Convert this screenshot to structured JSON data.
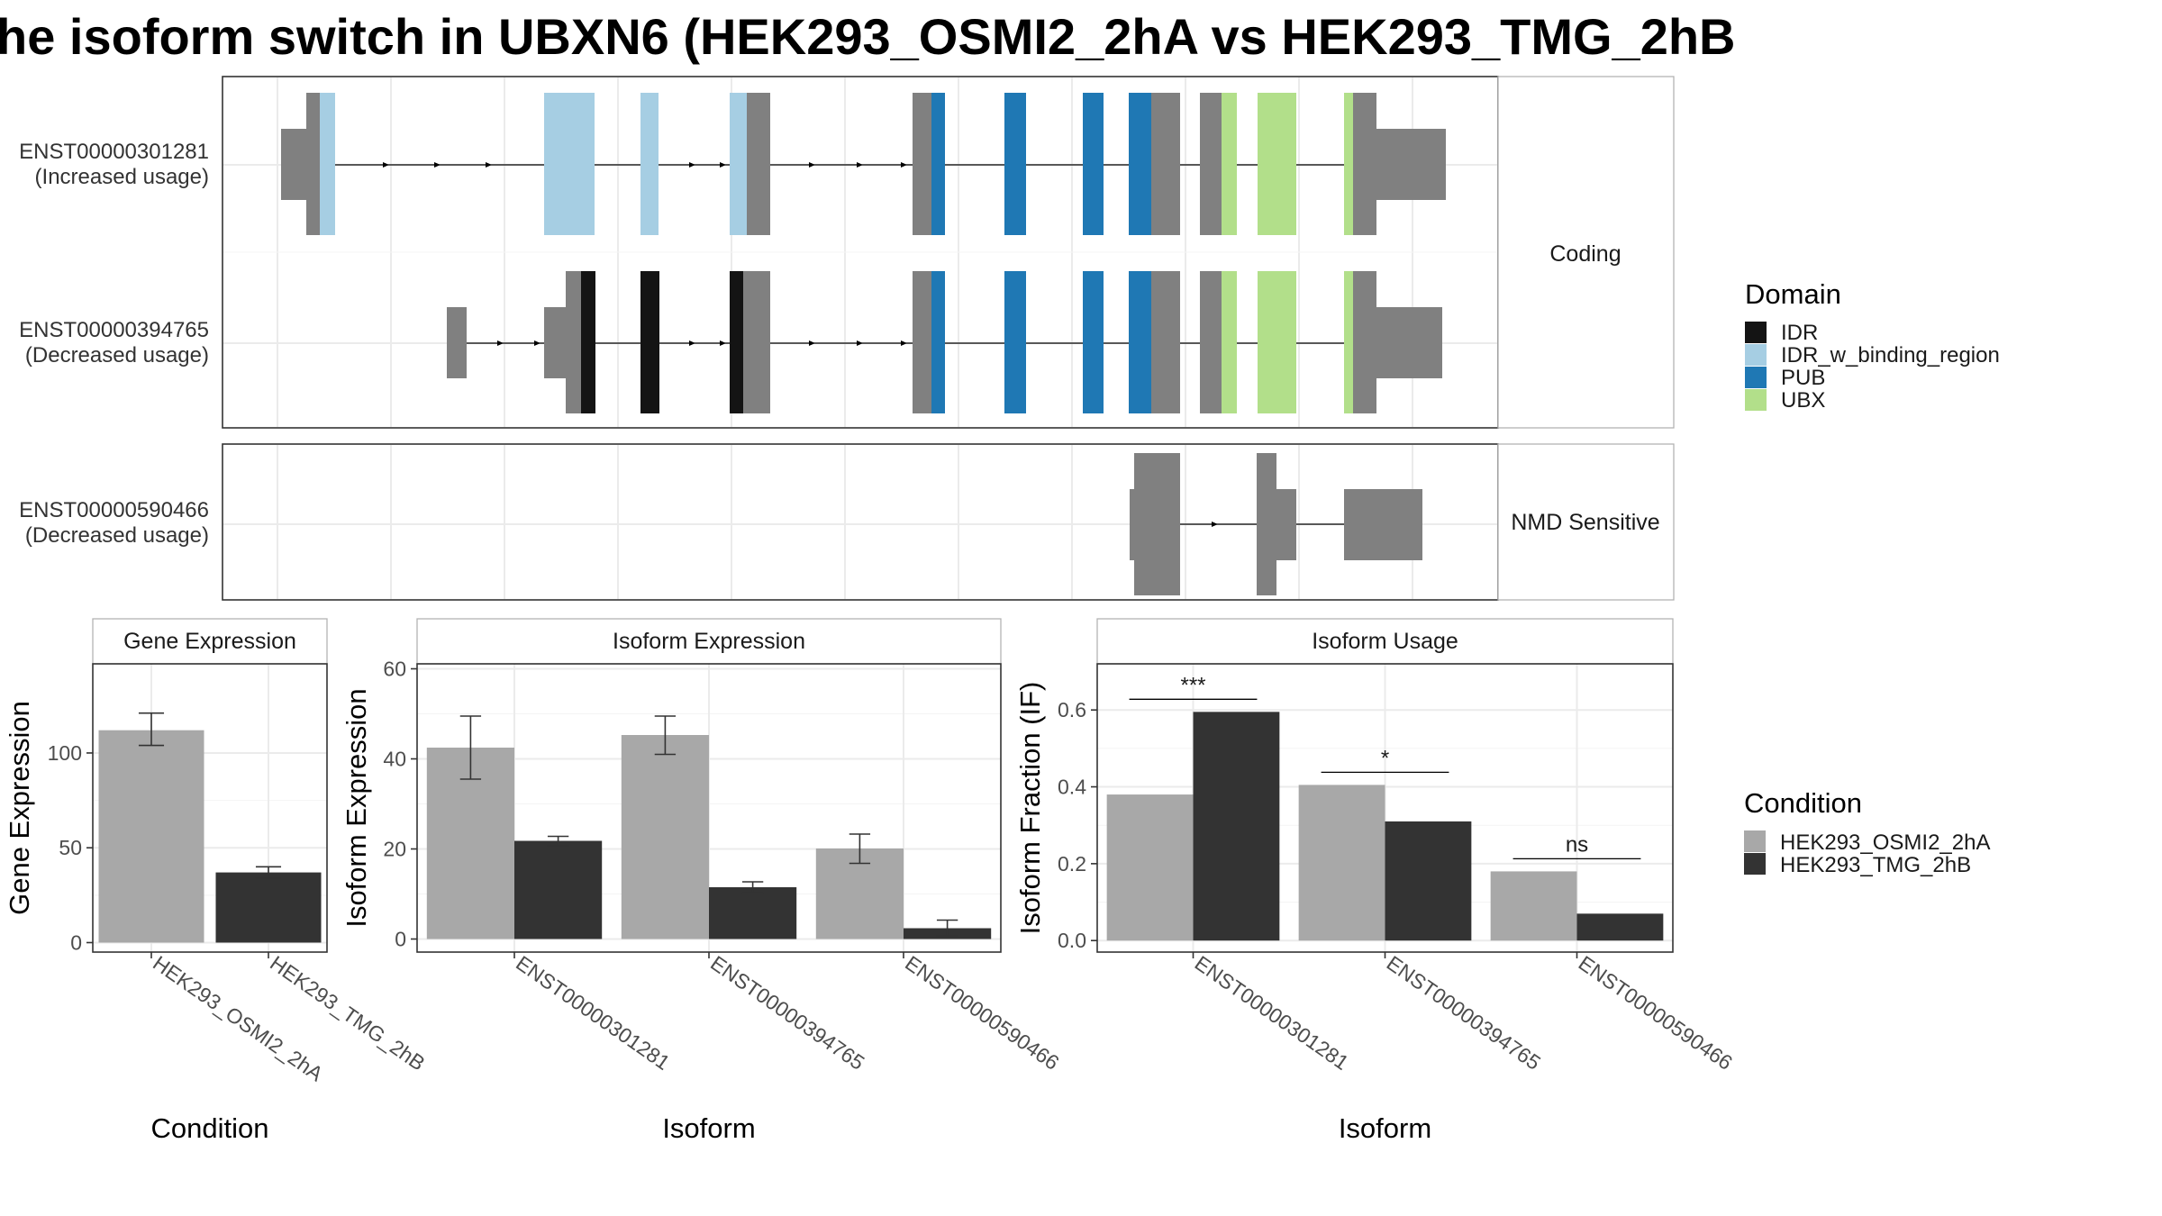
{
  "title": "he isoform switch in UBXN6 (HEK293_OSMI2_2hA vs HEK293_TMG_2hB",
  "colors": {
    "IDR": "#141414",
    "IDR_w_binding_region": "#a6cee3",
    "PUB": "#1f78b4",
    "UBX": "#b2df8a",
    "intron_exon": "#808080",
    "cond_a": "#a8a8a8",
    "cond_b": "#333333",
    "grid": "#ebebeb",
    "panel_border": "#333333",
    "strip_border": "#b3b3b3"
  },
  "structure": {
    "facets": [
      "Coding",
      "NMD Sensitive"
    ],
    "transcripts": [
      {
        "id": "ENST00000301281",
        "usage": "(Increased usage)",
        "facet": "Coding"
      },
      {
        "id": "ENST00000394765",
        "usage": "(Decreased usage)",
        "facet": "Coding"
      },
      {
        "id": "ENST00000590466",
        "usage": "(Decreased usage)",
        "facet": "NMD Sensitive"
      }
    ]
  },
  "legend_domain": {
    "title": "Domain",
    "items": [
      "IDR",
      "IDR_w_binding_region",
      "PUB",
      "UBX"
    ]
  },
  "legend_condition": {
    "title": "Condition",
    "items": [
      "HEK293_OSMI2_2hA",
      "HEK293_TMG_2hB"
    ]
  },
  "chart_data": [
    {
      "type": "bar",
      "title": "Gene Expression",
      "xlabel": "Condition",
      "ylabel": "Gene Expression",
      "categories": [
        "HEK293_OSMI2_2hA",
        "HEK293_TMG_2hB"
      ],
      "values": [
        112,
        37
      ],
      "error_low": [
        104,
        34
      ],
      "error_high": [
        121,
        40
      ],
      "yticks": [
        0,
        50,
        100
      ],
      "ylim": [
        -5,
        147
      ]
    },
    {
      "type": "bar",
      "title": "Isoform Expression",
      "xlabel": "Isoform",
      "ylabel": "Isoform Expression",
      "categories": [
        "ENST00000301281",
        "ENST00000394765",
        "ENST00000590466"
      ],
      "series": [
        {
          "name": "HEK293_OSMI2_2hA",
          "values": [
            42.5,
            45.3,
            20.1
          ],
          "error_low": [
            35.5,
            41.0,
            16.8
          ],
          "error_high": [
            49.5,
            49.5,
            23.3
          ]
        },
        {
          "name": "HEK293_TMG_2hB",
          "values": [
            21.8,
            11.5,
            2.4
          ],
          "error_low": [
            20.7,
            10.2,
            0.7
          ],
          "error_high": [
            22.8,
            12.7,
            4.2
          ]
        }
      ],
      "yticks": [
        0,
        20,
        40,
        60
      ],
      "ylim": [
        -2.9,
        61.1
      ]
    },
    {
      "type": "bar",
      "title": "Isoform Usage",
      "xlabel": "Isoform",
      "ylabel": "Isoform Fraction (IF)",
      "categories": [
        "ENST00000301281",
        "ENST00000394765",
        "ENST00000590466"
      ],
      "series": [
        {
          "name": "HEK293_OSMI2_2hA",
          "values": [
            0.38,
            0.405,
            0.18
          ]
        },
        {
          "name": "HEK293_TMG_2hB",
          "values": [
            0.595,
            0.31,
            0.07
          ]
        }
      ],
      "significance": [
        "***",
        "*",
        "ns"
      ],
      "yticks": [
        0.0,
        0.2,
        0.4,
        0.6
      ],
      "ytick_labels": [
        "0.0",
        "0.2",
        "0.4",
        "0.6"
      ],
      "ylim": [
        -0.03,
        0.72
      ]
    }
  ]
}
